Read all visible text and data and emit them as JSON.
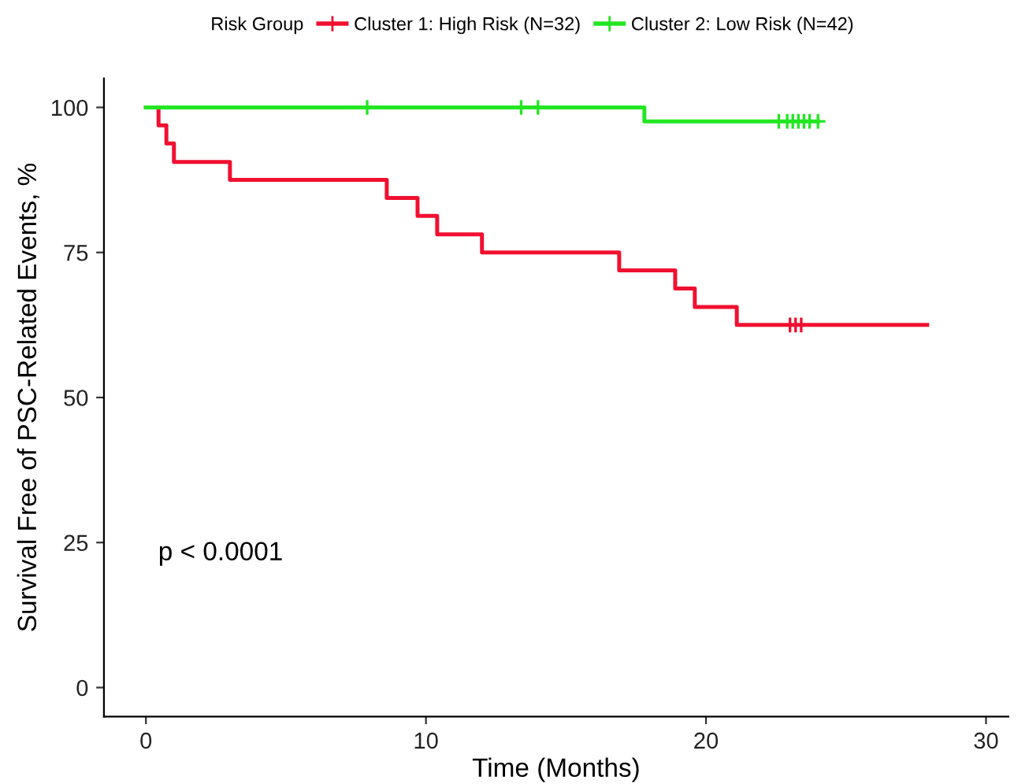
{
  "chart_data": {
    "type": "step",
    "xlabel": "Time (Months)",
    "ylabel": "Survival Free of PSC-Related Events, %",
    "legend_title": "Risk Group",
    "legend": "top",
    "xlim": [
      -1.5,
      30.8
    ],
    "ylim": [
      -5,
      105
    ],
    "xticks": [
      0,
      10,
      20,
      30
    ],
    "yticks": [
      0,
      25,
      50,
      75,
      100
    ],
    "grid": false,
    "annotations": [
      "p < 0.0001"
    ],
    "series": [
      {
        "name": "Cluster 1: High Risk (N=32)",
        "color": "#f01030",
        "x": [
          0,
          0.45,
          0.73,
          1.0,
          3.0,
          8.6,
          9.7,
          10.4,
          12.0,
          16.9,
          18.9,
          19.6,
          21.1,
          27.9
        ],
        "values": [
          100,
          96.9,
          93.8,
          90.6,
          87.5,
          84.4,
          81.3,
          78.1,
          75.0,
          71.9,
          68.8,
          65.6,
          62.5,
          62.5
        ]
      },
      {
        "name": "Cluster 2: Low Risk (N=42)",
        "color": "#22e622",
        "x": [
          0,
          17.8,
          24.0
        ],
        "values": [
          100,
          97.6,
          97.6
        ]
      },
      {
        "type": "scatter",
        "marker": "cross",
        "color": "#f01030",
        "x": [
          23.0,
          23.2,
          23.4
        ],
        "values": [
          62.5,
          62.5,
          62.5
        ]
      },
      {
        "type": "scatter",
        "marker": "cross",
        "color": "#22e622",
        "x": [
          7.9,
          13.4,
          14.0,
          22.6,
          22.9,
          23.1,
          23.3,
          23.5,
          23.7,
          24.0
        ],
        "values": [
          100,
          100,
          100,
          97.6,
          97.6,
          97.6,
          97.6,
          97.6,
          97.6,
          97.6
        ]
      }
    ]
  }
}
